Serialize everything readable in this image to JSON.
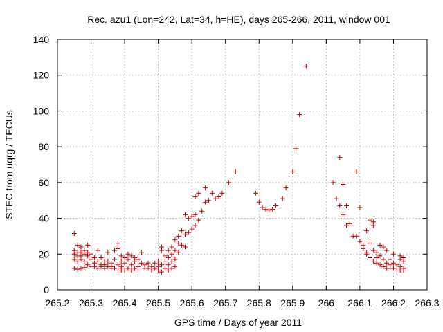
{
  "chart_data": {
    "type": "scatter",
    "title": "Rec. azu1 (Lon=242, Lat=34, h=HE), days 265-266, 2011, window 001",
    "xlabel": "GPS time / Days of year 2011",
    "ylabel": "STEC from uqrg / TECUs",
    "xlim": [
      265.2,
      266.3
    ],
    "ylim": [
      0,
      140
    ],
    "x_ticks": [
      265.2,
      265.3,
      265.4,
      265.5,
      265.6,
      265.7,
      265.8,
      265.9,
      266,
      266.1,
      266.2,
      266.3
    ],
    "x_tick_labels": [
      "265.2",
      "265.3",
      "265.4",
      "265.5",
      "265.6",
      "265.7",
      "265.8",
      "265.9",
      "266",
      "266.1",
      "266.2",
      "266.3"
    ],
    "y_ticks": [
      0,
      20,
      40,
      60,
      80,
      100,
      120,
      140
    ],
    "y_tick_labels": [
      "0",
      "20",
      "40",
      "60",
      "80",
      "100",
      "120",
      "140"
    ],
    "grid": true,
    "marker": "+",
    "marker_color": "#cc0000",
    "series": [
      {
        "points": [
          [
            265.25,
            31.5
          ],
          [
            265.25,
            22
          ],
          [
            265.25,
            20
          ],
          [
            265.25,
            17
          ],
          [
            265.25,
            12
          ],
          [
            265.26,
            25
          ],
          [
            265.26,
            21
          ],
          [
            265.26,
            19
          ],
          [
            265.26,
            16
          ],
          [
            265.26,
            11.5
          ],
          [
            265.27,
            24
          ],
          [
            265.27,
            21
          ],
          [
            265.27,
            19
          ],
          [
            265.27,
            17
          ],
          [
            265.27,
            12
          ],
          [
            265.28,
            22
          ],
          [
            265.28,
            20
          ],
          [
            265.28,
            16
          ],
          [
            265.28,
            12.5
          ],
          [
            265.29,
            25
          ],
          [
            265.29,
            21
          ],
          [
            265.29,
            19
          ],
          [
            265.29,
            14
          ],
          [
            265.3,
            20
          ],
          [
            265.3,
            17
          ],
          [
            265.3,
            13
          ],
          [
            265.31,
            18
          ],
          [
            265.31,
            15
          ],
          [
            265.31,
            13
          ],
          [
            265.32,
            22
          ],
          [
            265.32,
            16
          ],
          [
            265.32,
            12
          ],
          [
            265.33,
            18
          ],
          [
            265.33,
            14
          ],
          [
            265.33,
            13
          ],
          [
            265.34,
            16
          ],
          [
            265.34,
            14
          ],
          [
            265.34,
            12
          ],
          [
            265.35,
            21
          ],
          [
            265.35,
            16
          ],
          [
            265.35,
            13
          ],
          [
            265.36,
            15
          ],
          [
            265.36,
            13
          ],
          [
            265.36,
            12
          ],
          [
            265.37,
            22
          ],
          [
            265.37,
            17
          ],
          [
            265.37,
            12
          ],
          [
            265.38,
            26
          ],
          [
            265.38,
            23
          ],
          [
            265.38,
            14
          ],
          [
            265.38,
            11
          ],
          [
            265.39,
            19
          ],
          [
            265.39,
            16
          ],
          [
            265.39,
            13
          ],
          [
            265.39,
            11
          ],
          [
            265.4,
            18
          ],
          [
            265.4,
            15
          ],
          [
            265.4,
            11
          ],
          [
            265.41,
            20
          ],
          [
            265.41,
            17
          ],
          [
            265.41,
            12
          ],
          [
            265.42,
            19
          ],
          [
            265.42,
            14
          ],
          [
            265.42,
            11
          ],
          [
            265.43,
            18
          ],
          [
            265.43,
            16
          ],
          [
            265.43,
            12
          ],
          [
            265.44,
            17
          ],
          [
            265.44,
            13
          ],
          [
            265.44,
            11
          ],
          [
            265.45,
            21
          ],
          [
            265.45,
            15
          ],
          [
            265.46,
            14
          ],
          [
            265.46,
            12
          ],
          [
            265.47,
            15
          ],
          [
            265.47,
            12
          ],
          [
            265.48,
            13
          ],
          [
            265.48,
            11
          ],
          [
            265.49,
            15
          ],
          [
            265.49,
            12
          ],
          [
            265.5,
            16
          ],
          [
            265.5,
            13
          ],
          [
            265.5,
            11
          ],
          [
            265.51,
            24
          ],
          [
            265.51,
            22
          ],
          [
            265.51,
            14
          ],
          [
            265.51,
            10
          ],
          [
            265.52,
            19
          ],
          [
            265.52,
            16
          ],
          [
            265.52,
            12
          ],
          [
            265.53,
            22
          ],
          [
            265.53,
            18
          ],
          [
            265.53,
            14
          ],
          [
            265.53,
            11
          ],
          [
            265.54,
            24
          ],
          [
            265.54,
            20
          ],
          [
            265.54,
            16
          ],
          [
            265.54,
            12
          ],
          [
            265.55,
            28
          ],
          [
            265.55,
            22
          ],
          [
            265.55,
            17
          ],
          [
            265.55,
            13
          ],
          [
            265.56,
            30
          ],
          [
            265.56,
            26
          ],
          [
            265.56,
            21
          ],
          [
            265.57,
            33
          ],
          [
            265.57,
            25
          ],
          [
            265.58,
            42
          ],
          [
            265.58,
            31
          ],
          [
            265.58,
            24
          ],
          [
            265.59,
            40
          ],
          [
            265.59,
            32
          ],
          [
            265.6,
            41
          ],
          [
            265.6,
            34
          ],
          [
            265.61,
            52
          ],
          [
            265.61,
            42
          ],
          [
            265.61,
            36
          ],
          [
            265.62,
            54
          ],
          [
            265.62,
            39
          ],
          [
            265.63,
            44
          ],
          [
            265.64,
            49
          ],
          [
            265.64,
            57
          ],
          [
            265.65,
            50
          ],
          [
            265.66,
            54
          ],
          [
            265.67,
            51
          ],
          [
            265.68,
            52
          ],
          [
            265.69,
            54
          ],
          [
            265.71,
            60
          ],
          [
            265.73,
            66
          ],
          [
            265.79,
            54
          ],
          [
            265.8,
            49
          ],
          [
            265.81,
            46
          ],
          [
            265.82,
            45
          ],
          [
            265.83,
            44.5
          ],
          [
            265.84,
            45
          ],
          [
            265.85,
            47
          ],
          [
            265.87,
            51
          ],
          [
            265.88,
            57
          ],
          [
            265.9,
            66
          ],
          [
            265.91,
            79
          ],
          [
            265.92,
            98
          ],
          [
            265.94,
            125
          ],
          [
            266.02,
            60
          ],
          [
            266.03,
            51
          ],
          [
            266.04,
            74
          ],
          [
            266.04,
            47
          ],
          [
            266.05,
            59
          ],
          [
            266.05,
            42
          ],
          [
            266.06,
            47
          ],
          [
            266.06,
            36
          ],
          [
            266.07,
            37
          ],
          [
            266.08,
            30
          ],
          [
            266.09,
            66
          ],
          [
            266.09,
            30
          ],
          [
            266.1,
            46
          ],
          [
            266.1,
            27
          ],
          [
            266.11,
            25
          ],
          [
            266.11,
            23
          ],
          [
            266.12,
            33
          ],
          [
            266.12,
            21
          ],
          [
            266.12,
            20
          ],
          [
            266.13,
            39
          ],
          [
            266.13,
            26
          ],
          [
            266.13,
            18
          ],
          [
            266.14,
            38
          ],
          [
            266.14,
            36
          ],
          [
            266.14,
            22
          ],
          [
            266.14,
            16
          ],
          [
            266.15,
            21
          ],
          [
            266.15,
            18
          ],
          [
            266.15,
            15
          ],
          [
            266.16,
            25
          ],
          [
            266.16,
            19
          ],
          [
            266.16,
            14
          ],
          [
            266.17,
            24
          ],
          [
            266.17,
            17
          ],
          [
            266.17,
            13
          ],
          [
            266.18,
            22
          ],
          [
            266.18,
            15
          ],
          [
            266.18,
            12
          ],
          [
            266.19,
            17
          ],
          [
            266.19,
            14
          ],
          [
            266.19,
            12
          ],
          [
            266.2,
            20
          ],
          [
            266.2,
            15
          ],
          [
            266.2,
            12
          ],
          [
            266.21,
            14
          ],
          [
            266.21,
            11
          ],
          [
            266.22,
            19
          ],
          [
            266.22,
            17
          ],
          [
            266.22,
            13
          ],
          [
            266.22,
            11
          ],
          [
            266.23,
            18
          ],
          [
            266.23,
            16
          ],
          [
            266.23,
            12
          ],
          [
            266.23,
            11
          ]
        ]
      }
    ]
  }
}
